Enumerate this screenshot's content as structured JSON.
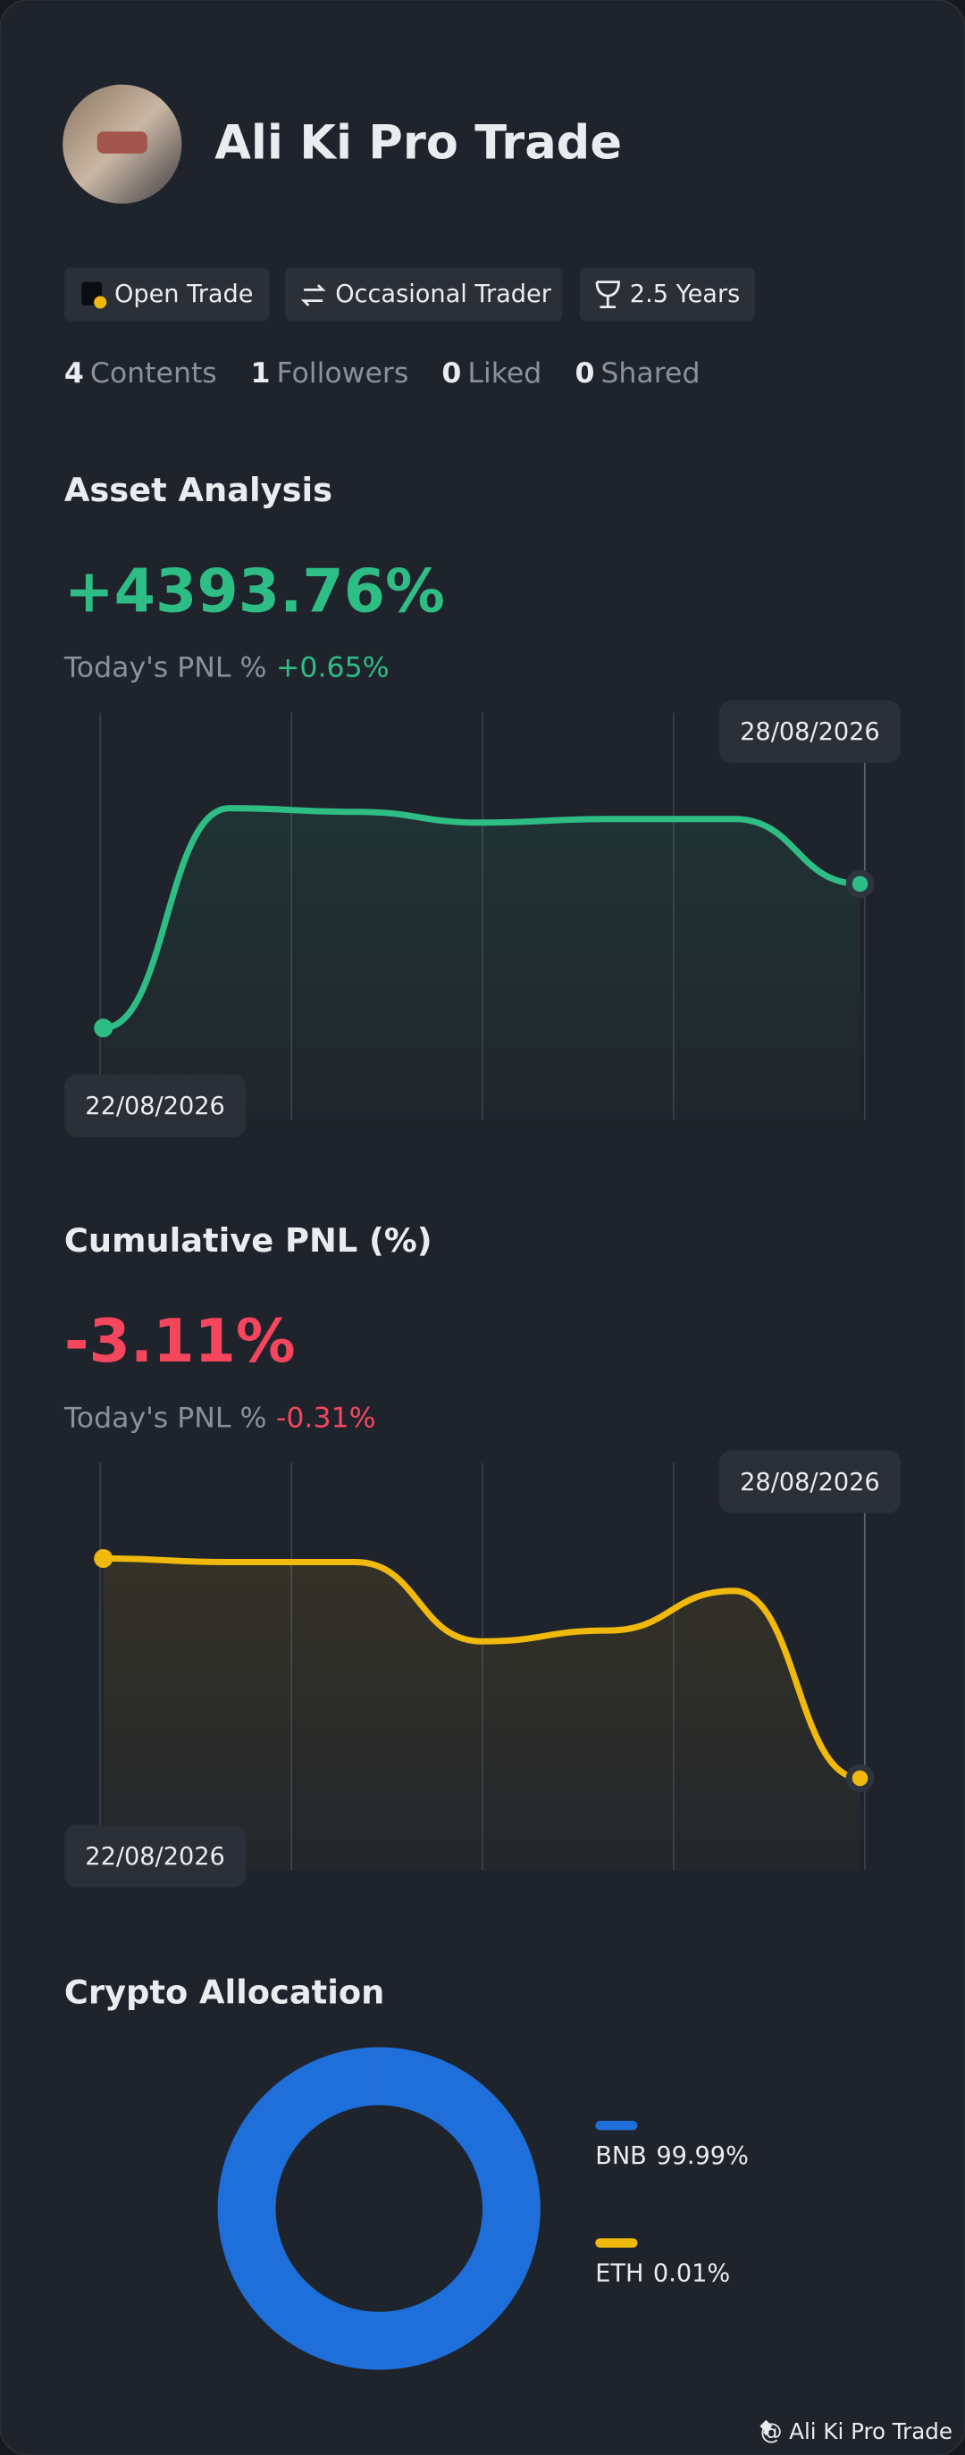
{
  "profile": {
    "name": "Ali Ki Pro Trade",
    "tags": [
      "Open Trade",
      "Occasional Trader",
      "2.5 Years"
    ],
    "stats": [
      {
        "value": 4,
        "label": "Contents"
      },
      {
        "value": 1,
        "label": "Followers"
      },
      {
        "value": 0,
        "label": "Liked"
      },
      {
        "value": 0,
        "label": "Shared"
      }
    ]
  },
  "chart_data": [
    {
      "type": "line",
      "title": "Asset Analysis",
      "headline": "+4393.76%",
      "subtitle_label": "Today's PNL %",
      "subtitle_value": "+0.65%",
      "categories": [
        "22/08/2026",
        null,
        null,
        null,
        null,
        null,
        "28/08/2026"
      ],
      "series": [
        {
          "color": "#2ebd85",
          "values": [
            19,
            80,
            79,
            76,
            77,
            77,
            59
          ]
        }
      ],
      "ylim": [
        0,
        100
      ],
      "grid": true
    },
    {
      "type": "line",
      "title": "Cumulative PNL (%)",
      "headline": "-3.11%",
      "subtitle_label": "Today's PNL %",
      "subtitle_value": "-0.31%",
      "categories": [
        "22/08/2026",
        null,
        null,
        null,
        null,
        null,
        "28/08/2026"
      ],
      "series": [
        {
          "color": "#f0b90b",
          "values": [
            80,
            79,
            79,
            57,
            60,
            71,
            19
          ]
        }
      ],
      "ylim": [
        0,
        100
      ],
      "grid": true
    },
    {
      "type": "pie",
      "title": "Crypto Allocation",
      "categories": [
        "BNB",
        "ETH"
      ],
      "values": [
        99.99,
        0.01
      ],
      "value_labels": [
        "99.99%",
        "0.01%"
      ],
      "colors": [
        "#1e6fd9",
        "#f0b90b"
      ]
    }
  ],
  "footer": "@ Ali Ki Pro Trade"
}
